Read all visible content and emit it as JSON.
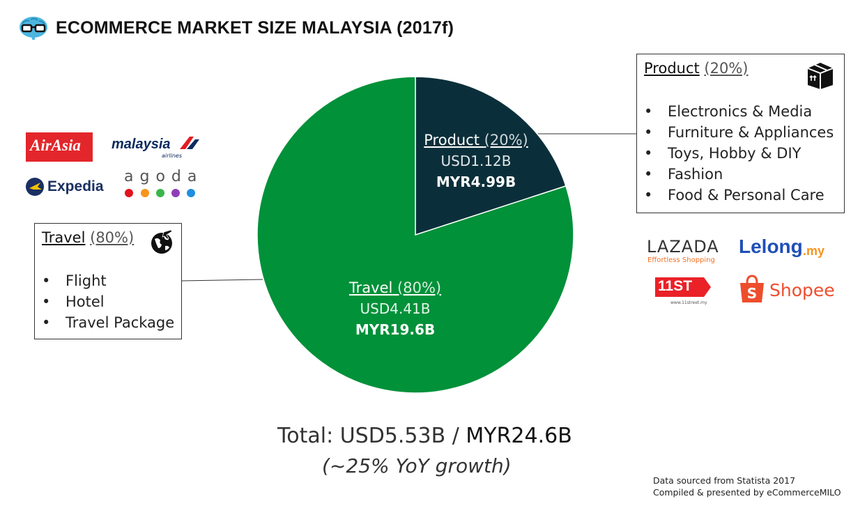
{
  "title": "ECOMMERCE MARKET SIZE MALAYSIA (2017f)",
  "icon": "nerd-glasses-brain-icon",
  "chart_data": {
    "type": "pie",
    "title": "ECOMMERCE MARKET SIZE MALAYSIA (2017f)",
    "slices": [
      {
        "label": "Product",
        "pct": "(20%)",
        "value": 20,
        "usd": "USD1.12B",
        "myr": "MYR4.99B",
        "color": "#0b2f3a"
      },
      {
        "label": "Travel",
        "pct": "(80%)",
        "value": 80,
        "usd": "USD4.41B",
        "myr": "MYR19.6B",
        "color": "#009139"
      }
    ]
  },
  "product_box": {
    "label": "Product",
    "pct": "(20%)",
    "icon": "package-box-icon",
    "items": [
      "Electronics & Media",
      "Furniture & Appliances",
      "Toys, Hobby & DIY",
      "Fashion",
      "Food & Personal Care"
    ]
  },
  "travel_box": {
    "label": "Travel",
    "pct": "(80%)",
    "icon": "globe-plane-icon",
    "items": [
      "Flight",
      "Hotel",
      "Travel Package"
    ]
  },
  "travel_logos": {
    "airasia": "AirAsia",
    "malaysia": "malaysia",
    "malaysia_sub": "airlines",
    "expedia": "Expedia",
    "agoda": "agoda"
  },
  "product_logos": {
    "lazada": "LAZADA",
    "lazada_sub": "Effortless Shopping",
    "lelong": "Lelong",
    "lelong_suffix": ".my",
    "elevenst": "11ST",
    "elevenst_sub": "www.11street.my",
    "shopee": "Shopee"
  },
  "total": {
    "prefix": "Total: USD5.53B / ",
    "myr": "MYR24.6B",
    "growth": "(~25% YoY growth)"
  },
  "source": {
    "line1": "Data sourced from Statista 2017",
    "line2": "Compiled & presented by eCommerceMILO"
  }
}
